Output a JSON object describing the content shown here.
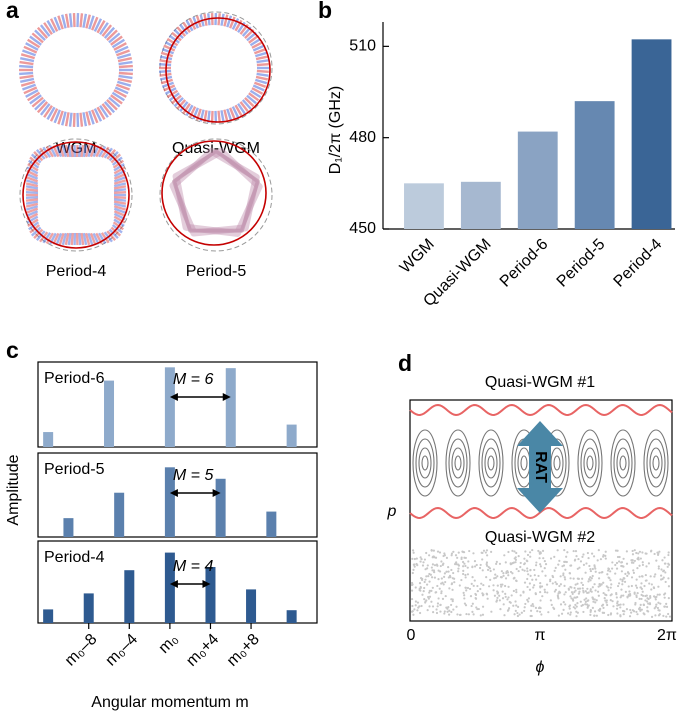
{
  "panel_labels": [
    "a",
    "b",
    "c",
    "d"
  ],
  "mode_images": {
    "labels": [
      "WGM",
      "Quasi-WGM",
      "Period-4",
      "Period-5"
    ]
  },
  "chart_data": [
    {
      "type": "bar",
      "ylabel": "D₁/2π (GHz)",
      "categories": [
        "WGM",
        "Quasi-WGM",
        "Period-6",
        "Period-5",
        "Period-4"
      ],
      "values": [
        465,
        465.5,
        482,
        492,
        512.3
      ],
      "colors": [
        "#bccbdc",
        "#a6b8d0",
        "#8aa3c3",
        "#6688b1",
        "#3a6596"
      ],
      "ylim": [
        450,
        518
      ],
      "yticks": [
        450,
        480,
        510
      ]
    },
    {
      "type": "amplitude",
      "label": "Period-6",
      "annotation": "M = 6",
      "arrow_x": [
        0,
        6
      ],
      "x": [
        -12,
        -6,
        0,
        6,
        12
      ],
      "values": [
        0.18,
        0.8,
        0.96,
        0.95,
        0.27
      ],
      "color": "#8eaacb",
      "xlim": [
        -13,
        14.5
      ],
      "ylim": [
        0,
        1
      ]
    },
    {
      "type": "amplitude",
      "label": "Period-5",
      "annotation": "M = 5",
      "arrow_x": [
        0,
        5
      ],
      "ylabel": "Amplitude",
      "x": [
        -10,
        -5,
        0,
        5,
        10
      ],
      "values": [
        0.23,
        0.54,
        0.85,
        0.71,
        0.31
      ],
      "color": "#5b80ad",
      "xlim": [
        -13,
        14.5
      ],
      "ylim": [
        0,
        1
      ]
    },
    {
      "type": "amplitude",
      "label": "Period-4",
      "annotation": "M = 4",
      "arrow_x": [
        0,
        4
      ],
      "x": [
        -12,
        -8,
        -4,
        0,
        4,
        8,
        12
      ],
      "values": [
        0.17,
        0.37,
        0.66,
        0.88,
        0.7,
        0.42,
        0.16
      ],
      "color": "#2e5a90",
      "xlim": [
        -13,
        14.5
      ],
      "ylim": [
        0,
        1
      ],
      "xticks": [
        {
          "value": -8,
          "label": "m₀–8"
        },
        {
          "value": -4,
          "label": "m₀–4"
        },
        {
          "value": 0,
          "label": "m₀"
        },
        {
          "value": 4,
          "label": "m₀+4"
        },
        {
          "value": 8,
          "label": "m₀+8"
        }
      ],
      "xlabel": "Angular momentum m"
    }
  ],
  "phase_space": {
    "upper": "Quasi-WGM #1",
    "lower": "Quasi-WGM #2",
    "arrow": "RAT",
    "xticks": [
      "0",
      "π",
      "2π"
    ],
    "xlabel": "ϕ",
    "ylabel": "p"
  }
}
